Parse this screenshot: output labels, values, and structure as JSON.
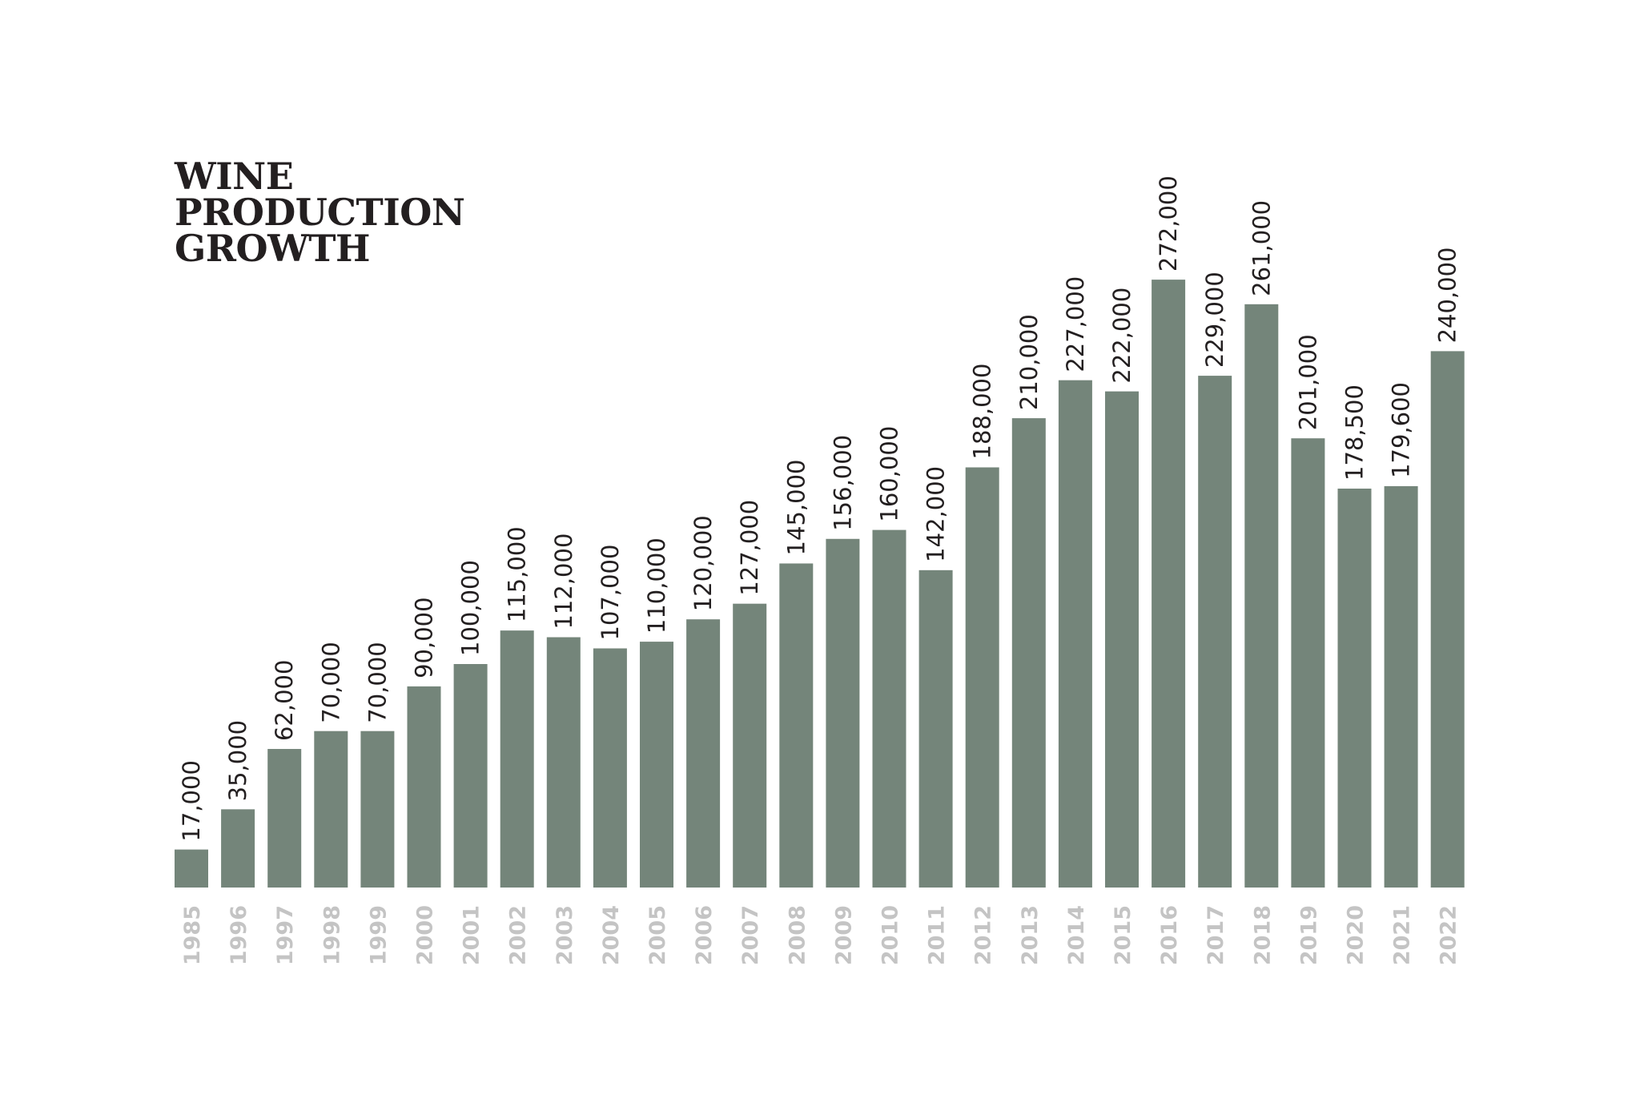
{
  "chart_data": {
    "type": "bar",
    "title": "WINE PRODUCTION GROWTH",
    "categories": [
      "1985",
      "1996",
      "1997",
      "1998",
      "1999",
      "2000",
      "2001",
      "2002",
      "2003",
      "2004",
      "2005",
      "2006",
      "2007",
      "2008",
      "2009",
      "2010",
      "2011",
      "2012",
      "2013",
      "2014",
      "2015",
      "2016",
      "2017",
      "2018",
      "2019",
      "2020",
      "2021",
      "2022"
    ],
    "values": [
      17000,
      35000,
      62000,
      70000,
      70000,
      90000,
      100000,
      115000,
      112000,
      107000,
      110000,
      120000,
      127000,
      145000,
      156000,
      160000,
      142000,
      188000,
      210000,
      227000,
      222000,
      272000,
      229000,
      261000,
      201000,
      178500,
      179600,
      240000
    ],
    "value_labels": [
      "17,000",
      "35,000",
      "62,000",
      "70,000",
      "70,000",
      "90,000",
      "100,000",
      "115,000",
      "112,000",
      "107,000",
      "110,000",
      "120,000",
      "127,000",
      "145,000",
      "156,000",
      "160,000",
      "142,000",
      "188,000",
      "210,000",
      "227,000",
      "222,000",
      "272,000",
      "229,000",
      "261,000",
      "201,000",
      "178,500",
      "179,600",
      "240,000"
    ],
    "color": "#74857a",
    "category_color": "#c4c4c4",
    "ylim": [
      0,
      300000
    ]
  }
}
